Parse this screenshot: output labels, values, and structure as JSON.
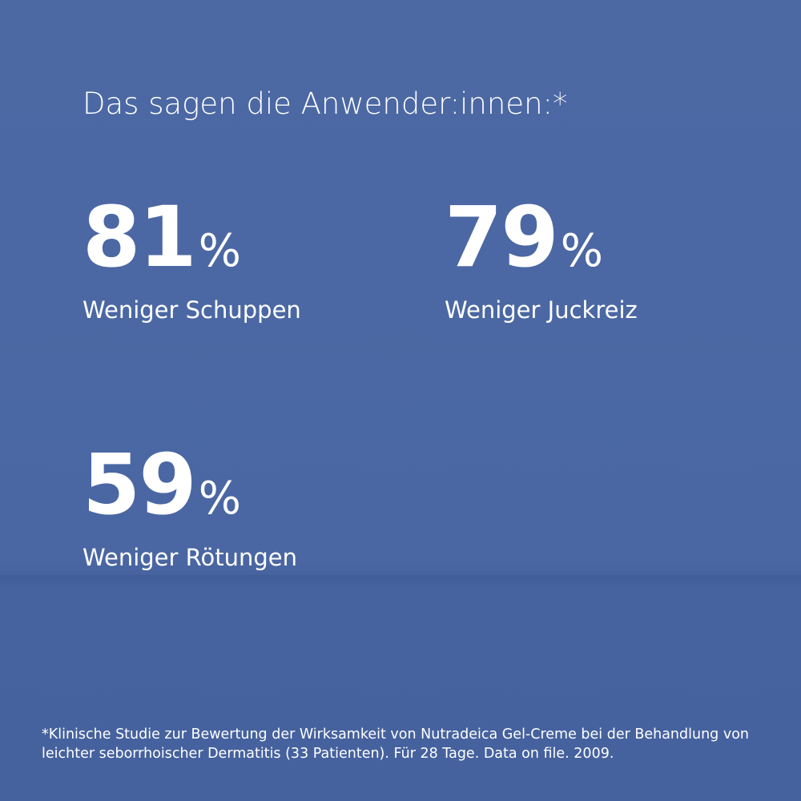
{
  "header": {
    "title": "Das sagen die Anwender:innen:*"
  },
  "stats": [
    {
      "value": 81,
      "unit": "%",
      "label": "Weniger Schuppen"
    },
    {
      "value": 79,
      "unit": "%",
      "label": "Weniger Juckreiz"
    },
    {
      "value": 59,
      "unit": "%",
      "label": "Weniger Rötungen"
    }
  ],
  "footnote": "*Klinische Studie zur Bewertung der Wirksamkeit von Nutradeica Gel-Creme bei der Behandlung von leichter seborrhoischer Dermatitis (33 Patienten). Für 28 Tage. Data on file. 2009."
}
